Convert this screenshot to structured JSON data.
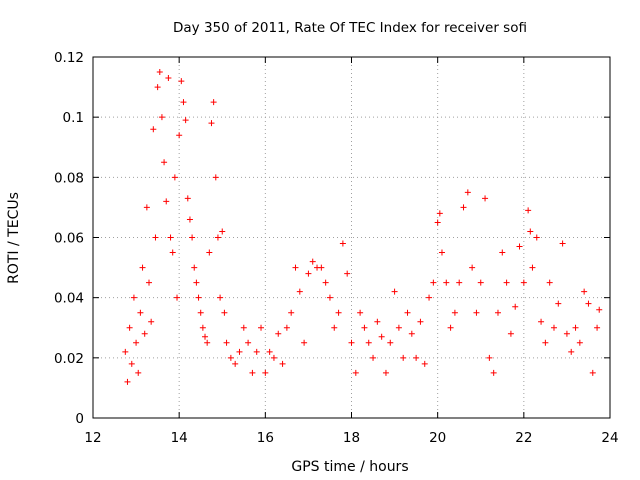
{
  "chart_data": {
    "type": "scatter",
    "title": "Day 350 of 2011, Rate Of TEC Index for receiver sofi",
    "xlabel": "GPS time / hours",
    "ylabel": "ROTI / TECUs",
    "xlim": [
      12,
      24
    ],
    "ylim": [
      0,
      0.12
    ],
    "xticks": [
      12,
      14,
      16,
      18,
      20,
      22,
      24
    ],
    "xtick_labels": [
      "12",
      "14",
      "16",
      "18",
      "20",
      "22",
      "24"
    ],
    "yticks": [
      0,
      0.02,
      0.04,
      0.06,
      0.08,
      0.1,
      0.12
    ],
    "ytick_labels": [
      "0",
      "0.02",
      "0.04",
      "0.06",
      "0.08",
      "0.1",
      "0.12"
    ],
    "grid": true,
    "marker": "+",
    "color": "#ff0000",
    "series": [
      {
        "name": "ROTI",
        "points": [
          [
            12.75,
            0.022
          ],
          [
            12.8,
            0.012
          ],
          [
            12.85,
            0.03
          ],
          [
            12.9,
            0.018
          ],
          [
            12.95,
            0.04
          ],
          [
            13.0,
            0.025
          ],
          [
            13.05,
            0.015
          ],
          [
            13.1,
            0.035
          ],
          [
            13.15,
            0.05
          ],
          [
            13.2,
            0.028
          ],
          [
            13.25,
            0.07
          ],
          [
            13.3,
            0.045
          ],
          [
            13.35,
            0.032
          ],
          [
            13.4,
            0.096
          ],
          [
            13.45,
            0.06
          ],
          [
            13.5,
            0.11
          ],
          [
            13.55,
            0.115
          ],
          [
            13.6,
            0.1
          ],
          [
            13.65,
            0.085
          ],
          [
            13.7,
            0.072
          ],
          [
            13.75,
            0.113
          ],
          [
            13.8,
            0.06
          ],
          [
            13.85,
            0.055
          ],
          [
            13.9,
            0.08
          ],
          [
            13.95,
            0.04
          ],
          [
            14.0,
            0.094
          ],
          [
            14.05,
            0.112
          ],
          [
            14.1,
            0.105
          ],
          [
            14.15,
            0.099
          ],
          [
            14.2,
            0.073
          ],
          [
            14.25,
            0.066
          ],
          [
            14.3,
            0.06
          ],
          [
            14.35,
            0.05
          ],
          [
            14.4,
            0.045
          ],
          [
            14.45,
            0.04
          ],
          [
            14.5,
            0.035
          ],
          [
            14.55,
            0.03
          ],
          [
            14.6,
            0.027
          ],
          [
            14.65,
            0.025
          ],
          [
            14.7,
            0.055
          ],
          [
            14.75,
            0.098
          ],
          [
            14.8,
            0.105
          ],
          [
            14.85,
            0.08
          ],
          [
            14.9,
            0.06
          ],
          [
            14.95,
            0.04
          ],
          [
            15.0,
            0.062
          ],
          [
            15.05,
            0.035
          ],
          [
            15.1,
            0.025
          ],
          [
            15.2,
            0.02
          ],
          [
            15.3,
            0.018
          ],
          [
            15.4,
            0.022
          ],
          [
            15.5,
            0.03
          ],
          [
            15.6,
            0.025
          ],
          [
            15.7,
            0.015
          ],
          [
            15.8,
            0.022
          ],
          [
            15.9,
            0.03
          ],
          [
            16.0,
            0.015
          ],
          [
            16.1,
            0.022
          ],
          [
            16.2,
            0.02
          ],
          [
            16.3,
            0.028
          ],
          [
            16.4,
            0.018
          ],
          [
            16.5,
            0.03
          ],
          [
            16.6,
            0.035
          ],
          [
            16.7,
            0.05
          ],
          [
            16.8,
            0.042
          ],
          [
            16.9,
            0.025
          ],
          [
            17.0,
            0.048
          ],
          [
            17.1,
            0.052
          ],
          [
            17.2,
            0.05
          ],
          [
            17.3,
            0.05
          ],
          [
            17.4,
            0.045
          ],
          [
            17.5,
            0.04
          ],
          [
            17.6,
            0.03
          ],
          [
            17.7,
            0.035
          ],
          [
            17.8,
            0.058
          ],
          [
            17.9,
            0.048
          ],
          [
            18.0,
            0.025
          ],
          [
            18.1,
            0.015
          ],
          [
            18.2,
            0.035
          ],
          [
            18.3,
            0.03
          ],
          [
            18.4,
            0.025
          ],
          [
            18.5,
            0.02
          ],
          [
            18.6,
            0.032
          ],
          [
            18.7,
            0.027
          ],
          [
            18.8,
            0.015
          ],
          [
            18.9,
            0.025
          ],
          [
            19.0,
            0.042
          ],
          [
            19.1,
            0.03
          ],
          [
            19.2,
            0.02
          ],
          [
            19.3,
            0.035
          ],
          [
            19.4,
            0.028
          ],
          [
            19.5,
            0.02
          ],
          [
            19.6,
            0.032
          ],
          [
            19.7,
            0.018
          ],
          [
            19.8,
            0.04
          ],
          [
            19.9,
            0.045
          ],
          [
            20.0,
            0.065
          ],
          [
            20.05,
            0.068
          ],
          [
            20.1,
            0.055
          ],
          [
            20.2,
            0.045
          ],
          [
            20.3,
            0.03
          ],
          [
            20.4,
            0.035
          ],
          [
            20.5,
            0.045
          ],
          [
            20.6,
            0.07
          ],
          [
            20.7,
            0.075
          ],
          [
            20.8,
            0.05
          ],
          [
            20.9,
            0.035
          ],
          [
            21.0,
            0.045
          ],
          [
            21.1,
            0.073
          ],
          [
            21.2,
            0.02
          ],
          [
            21.3,
            0.015
          ],
          [
            21.4,
            0.035
          ],
          [
            21.5,
            0.055
          ],
          [
            21.6,
            0.045
          ],
          [
            21.7,
            0.028
          ],
          [
            21.8,
            0.037
          ],
          [
            21.9,
            0.057
          ],
          [
            22.0,
            0.045
          ],
          [
            22.1,
            0.069
          ],
          [
            22.15,
            0.062
          ],
          [
            22.2,
            0.05
          ],
          [
            22.3,
            0.06
          ],
          [
            22.4,
            0.032
          ],
          [
            22.5,
            0.025
          ],
          [
            22.6,
            0.045
          ],
          [
            22.7,
            0.03
          ],
          [
            22.8,
            0.038
          ],
          [
            22.9,
            0.058
          ],
          [
            23.0,
            0.028
          ],
          [
            23.1,
            0.022
          ],
          [
            23.2,
            0.03
          ],
          [
            23.3,
            0.025
          ],
          [
            23.4,
            0.042
          ],
          [
            23.5,
            0.038
          ],
          [
            23.6,
            0.015
          ],
          [
            23.7,
            0.03
          ],
          [
            23.75,
            0.036
          ]
        ]
      }
    ]
  }
}
